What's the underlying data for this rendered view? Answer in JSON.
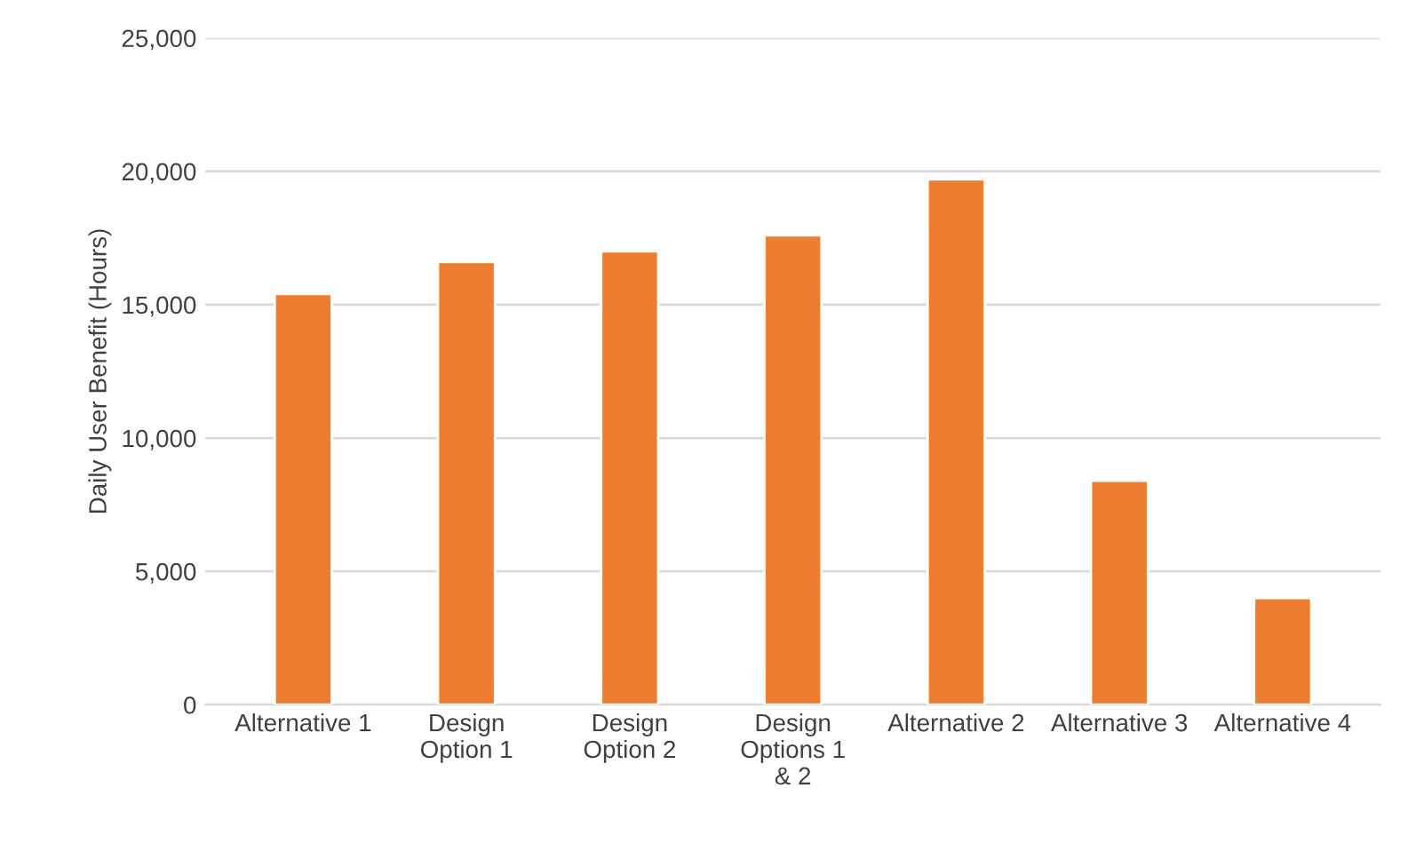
{
  "chart_data": {
    "type": "bar",
    "ylabel": "Daily User Benefit (Hours)",
    "categories": [
      "Alternative 1",
      "Design\nOption 1",
      "Design\nOption 2",
      "Design\nOptions 1\n& 2",
      "Alternative 2",
      "Alternative 3",
      "Alternative 4"
    ],
    "values": [
      15400,
      16600,
      17000,
      17600,
      19700,
      8400,
      4000
    ],
    "color": "#ed7d31",
    "ylim": [
      0,
      25000
    ],
    "yticks": [
      {
        "value": 0,
        "label": "0"
      },
      {
        "value": 5000,
        "label": "5,000"
      },
      {
        "value": 10000,
        "label": "10,000"
      },
      {
        "value": 15000,
        "label": "15,000"
      },
      {
        "value": 20000,
        "label": "20,000"
      },
      {
        "value": 25000,
        "label": "25,000"
      }
    ],
    "grid": "y"
  }
}
